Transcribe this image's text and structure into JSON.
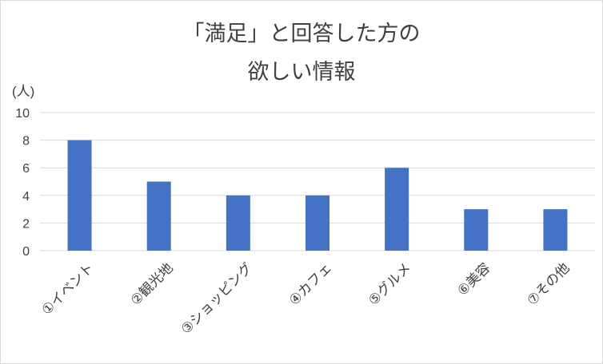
{
  "chart_data": {
    "type": "bar",
    "title_lines": [
      "「満足」と回答した方の",
      "欲しい情報"
    ],
    "ylabel": "(人)",
    "xlabel": "",
    "categories": [
      "①イベント",
      "②観光地",
      "③ショッピング",
      "④カフェ",
      "⑤グルメ",
      "⑥美容",
      "⑦その他"
    ],
    "values": [
      8,
      5,
      4,
      4,
      6,
      3,
      3
    ],
    "ylim": [
      0,
      10
    ],
    "yticks": [
      "0",
      "2",
      "4",
      "6",
      "8",
      "10"
    ],
    "grid": true,
    "legend": "none",
    "bar_color": "#4472c4"
  }
}
